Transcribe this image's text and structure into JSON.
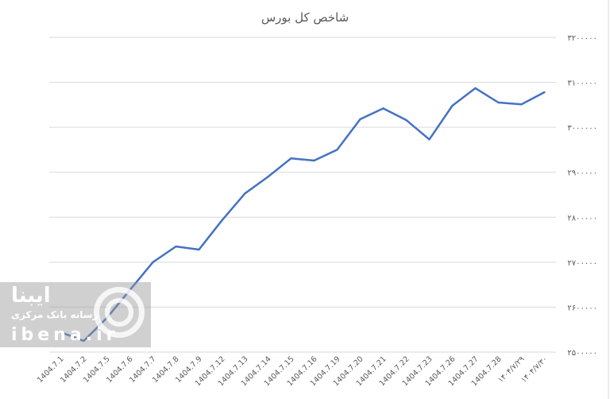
{
  "chart_data": {
    "type": "line",
    "title": "شاخص کل بورس",
    "categories": [
      "1404.7.1",
      "1404.7.2",
      "1404.7.5",
      "1404.7.6",
      "1404.7.7",
      "1404.7.8",
      "1404.7.9",
      "1404.7.12",
      "1404.7.13",
      "1404.7.14",
      "1404.7.15",
      "1404.7.16",
      "1404.7.19",
      "1404.7.20",
      "1404.7.21",
      "1404.7.22",
      "1404.7.23",
      "1404.7.26",
      "1404.7.27",
      "1404.7.28",
      "۱۴۰۴/۷/۲۹",
      "۱۴۰۴/۷/۳۰"
    ],
    "values": [
      2544000,
      2525000,
      2576000,
      2638000,
      2700000,
      2735000,
      2728000,
      2793000,
      2853000,
      2890000,
      2931000,
      2926000,
      2950000,
      3018000,
      3042000,
      3016000,
      2973000,
      3048000,
      3087000,
      3055000,
      3051000,
      3078000
    ],
    "ylim": [
      2500000,
      3200000
    ],
    "yticks": [
      2500000,
      2600000,
      2700000,
      2800000,
      2900000,
      3000000,
      3100000,
      3200000
    ],
    "ytick_labels": [
      "۲۵۰۰۰۰۰",
      "۲۶۰۰۰۰۰",
      "۲۷۰۰۰۰۰",
      "۲۸۰۰۰۰۰",
      "۲۹۰۰۰۰۰",
      "۳۰۰۰۰۰۰",
      "۳۱۰۰۰۰۰",
      "۳۲۰۰۰۰۰"
    ],
    "y_axis_side": "right",
    "grid": true,
    "line_color": "#4472c4"
  },
  "watermark": {
    "title": "ایبنا",
    "subtitle": "رسانه بانک مرکزی",
    "site": "ibena.ir"
  }
}
